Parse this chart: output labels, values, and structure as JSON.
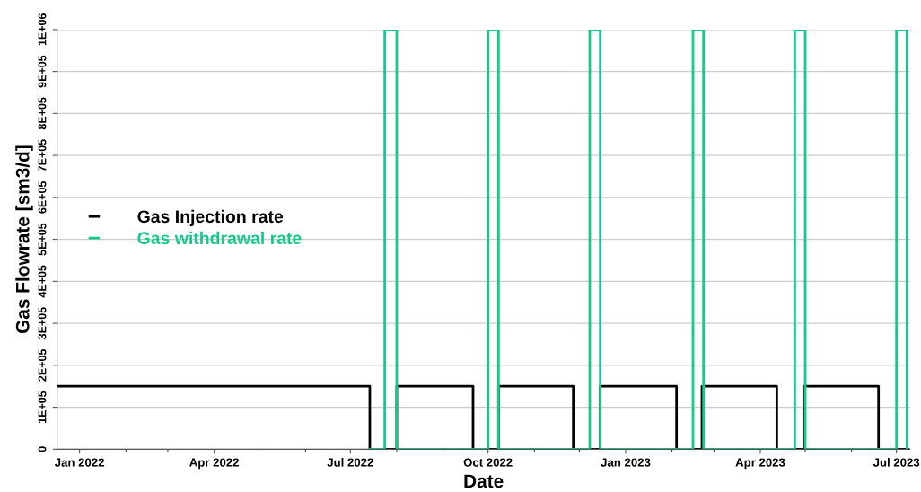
{
  "chart_data": {
    "type": "step",
    "xlabel": "Date",
    "ylabel": "Gas Flowrate [sm3/d]",
    "series": [
      {
        "name": "Gas Injection rate",
        "color": "#000000",
        "x": [
          "2021-12-17",
          "2022-07-14",
          "2022-08-01",
          "2022-09-21",
          "2022-10-08",
          "2022-11-27",
          "2022-12-15",
          "2023-02-04",
          "2023-02-21",
          "2023-04-12",
          "2023-04-30",
          "2023-06-19",
          "2023-07-09"
        ],
        "values": [
          150000,
          0,
          150000,
          0,
          150000,
          0,
          150000,
          0,
          150000,
          0,
          150000,
          0,
          0
        ]
      },
      {
        "name": "Gas withdrawal rate",
        "color": "#14c98a",
        "x": [
          "2022-07-14",
          "2022-07-24",
          "2022-08-01",
          "2022-10-01",
          "2022-10-08",
          "2022-12-08",
          "2022-12-15",
          "2023-02-15",
          "2023-02-22",
          "2023-04-24",
          "2023-05-01",
          "2023-07-01",
          "2023-07-08"
        ],
        "values": [
          0,
          1000000,
          0,
          1000000,
          0,
          1000000,
          0,
          1000000,
          0,
          1000000,
          0,
          1000000,
          0
        ]
      }
    ],
    "xlim": [
      "2021-12-17",
      "2023-07-10"
    ],
    "xticks": [
      {
        "value": "2022-01-01",
        "label": "Jan 2022"
      },
      {
        "value": "2022-04-01",
        "label": "Apr 2022"
      },
      {
        "value": "2022-07-01",
        "label": "Jul 2022"
      },
      {
        "value": "2022-10-01",
        "label": "Oct 2022"
      },
      {
        "value": "2023-01-01",
        "label": "Jan 2023"
      },
      {
        "value": "2023-04-01",
        "label": "Apr 2023"
      },
      {
        "value": "2023-07-01",
        "label": "Jul 2023"
      }
    ],
    "ylim": [
      0,
      1000000
    ],
    "yticks": [
      0,
      {
        "value": 100000,
        "label": "1E+05"
      },
      {
        "value": 200000,
        "label": "2E+05"
      },
      {
        "value": 300000,
        "label": "3E+05"
      },
      {
        "value": 400000,
        "label": "4E+05"
      },
      {
        "value": 500000,
        "label": "5E+05"
      },
      {
        "value": 600000,
        "label": "6E+05"
      },
      {
        "value": 700000,
        "label": "7E+05"
      },
      {
        "value": 800000,
        "label": "8E+05"
      },
      {
        "value": 900000,
        "label": "9E+05"
      },
      {
        "value": 1000000,
        "label": "1E+06"
      }
    ],
    "grid": "y",
    "legend": "left",
    "line_style": "solid",
    "marker": "none"
  }
}
